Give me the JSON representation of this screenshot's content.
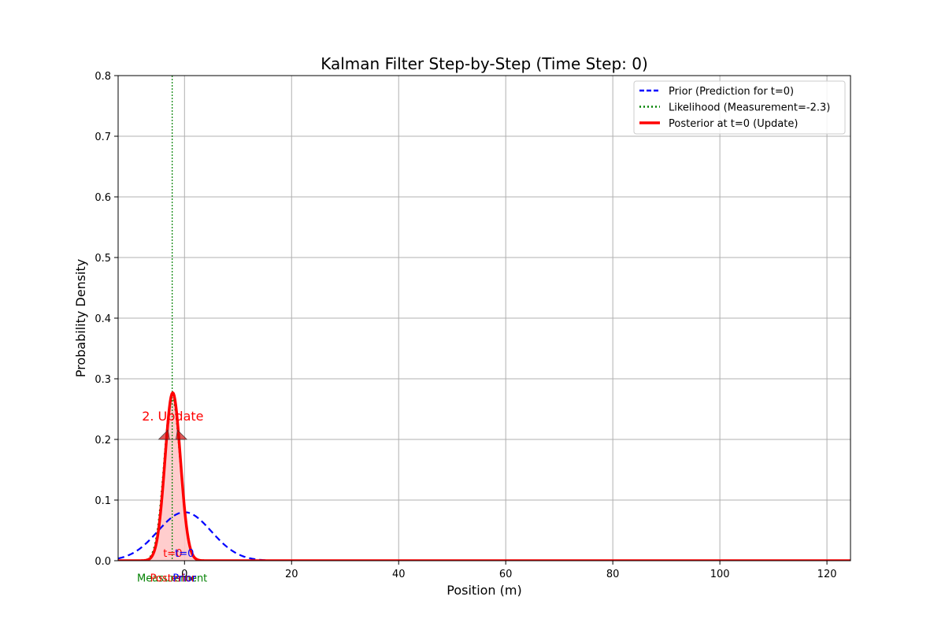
{
  "chart_data": {
    "type": "line",
    "title": "Kalman Filter Step-by-Step (Time Step: 0)",
    "xlabel": "Position (m)",
    "ylabel": "Probability Density",
    "xlim": [
      -12.4,
      124.4
    ],
    "ylim": [
      0,
      0.8
    ],
    "xticks": [
      0,
      20,
      40,
      60,
      80,
      100,
      120
    ],
    "yticks": [
      0.0,
      0.1,
      0.2,
      0.3,
      0.4,
      0.5,
      0.6,
      0.7,
      0.8
    ],
    "grid": true,
    "legend_position": "top-right",
    "series": [
      {
        "name": "Prior (Prediction for t=0)",
        "kind": "gaussian",
        "mean": 0.0,
        "std": 5.0,
        "peak": 0.08,
        "color": "#0000ff",
        "style": "dashed"
      },
      {
        "name": "Likelihood (Measurement=-2.3)",
        "kind": "gaussian",
        "mean": -2.3,
        "std": 1.5,
        "peak": 0.27,
        "color": "#008000",
        "style": "dotted"
      },
      {
        "name": "Posterior at t=0 (Update)",
        "kind": "gaussian",
        "mean": -2.2,
        "std": 1.44,
        "peak": 0.277,
        "color": "#ff0000",
        "style": "solid",
        "fill": "#ffc8c8"
      }
    ],
    "measurement_line": {
      "x": -2.3,
      "color": "#008000"
    },
    "annotations": [
      {
        "text": "2. Update",
        "x": -2.2,
        "y": 0.2,
        "color": "#ff0000"
      },
      {
        "text": "t=0",
        "x": -2.2,
        "y": 0.005,
        "color": "#ff0000"
      },
      {
        "text": "t=0",
        "x": 0.0,
        "y": 0.005,
        "color": "#0000ff"
      },
      {
        "text": "Measurement",
        "x": -2.3,
        "y": -0.015,
        "color": "#008000"
      },
      {
        "text": "Posterior",
        "x": -2.2,
        "y": -0.015,
        "color": "#ff0000"
      },
      {
        "text": "Prior",
        "x": 0.0,
        "y": -0.015,
        "color": "#0000ff"
      }
    ]
  }
}
